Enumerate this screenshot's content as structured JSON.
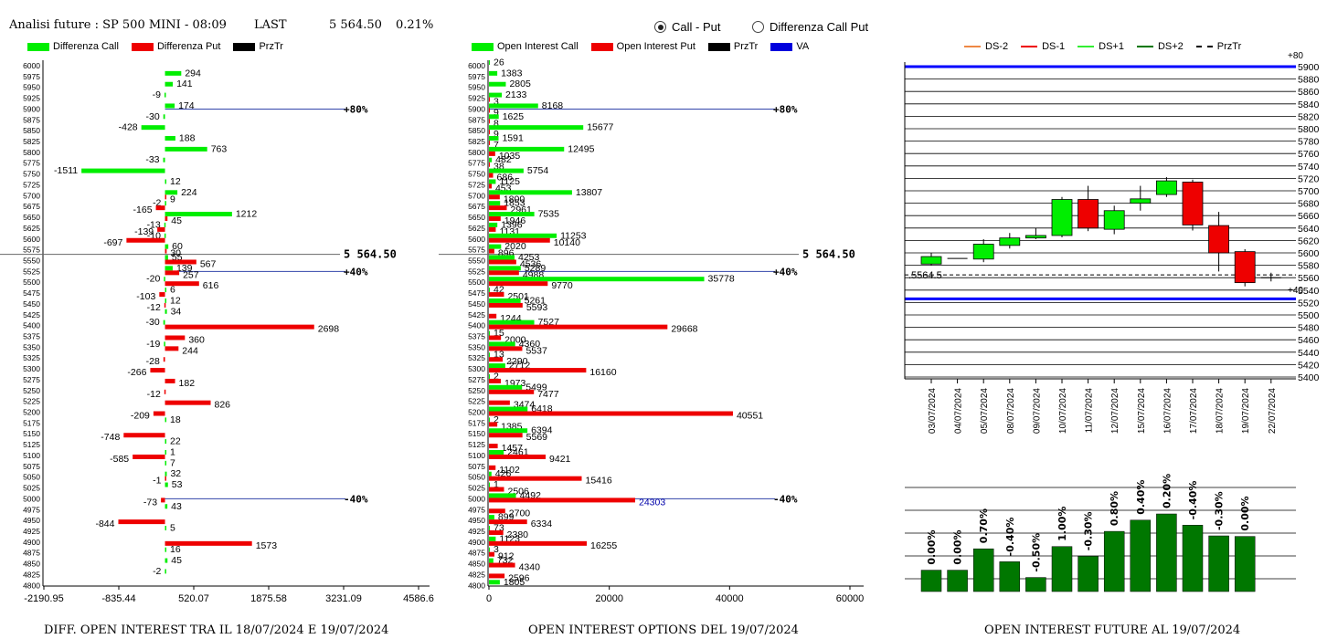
{
  "header": {
    "instrument": "Analisi future : SP 500 MINI - 08:09",
    "last_label": "LAST",
    "last_value": "5 564.50",
    "change": "0.21%"
  },
  "radio": [
    {
      "label": "Call - Put",
      "selected": true
    },
    {
      "label": "Differenza Call Put",
      "selected": false
    }
  ],
  "colors": {
    "green": "#00ee00",
    "red": "#ee0000",
    "blue": "#0000dd",
    "darkgreen": "#007700",
    "va": "#0000ff"
  },
  "strikes": [
    6000,
    5975,
    5950,
    5925,
    5900,
    5875,
    5850,
    5825,
    5800,
    5775,
    5750,
    5725,
    5700,
    5675,
    5650,
    5625,
    5600,
    5575,
    5550,
    5525,
    5500,
    5475,
    5450,
    5425,
    5400,
    5375,
    5350,
    5325,
    5300,
    5275,
    5250,
    5225,
    5200,
    5175,
    5150,
    5125,
    5100,
    5075,
    5050,
    5025,
    5000,
    4975,
    4950,
    4925,
    4900,
    4875,
    4850,
    4825,
    4800
  ],
  "left": {
    "legend": [
      {
        "label": "Differenza Call",
        "color": "#00ee00"
      },
      {
        "label": "Differenza Put",
        "color": "#ee0000"
      },
      {
        "label": "PrzTr",
        "color": "#000000"
      }
    ],
    "caption": "DIFF. OPEN INTEREST TRA IL 18/07/2024 E 19/07/2024",
    "xticks": [
      "-2190.95",
      "-835.44",
      "520.07",
      "1875.58",
      "3231.09",
      "4586.6"
    ],
    "xmin": -2190.95,
    "xmax": 4586.6,
    "price_label": "5 564.50",
    "pct_80": "+80%",
    "pct_40": "+40%",
    "pct_m40": "-40%"
  },
  "mid": {
    "legend": [
      {
        "label": "Open Interest Call",
        "color": "#00ee00"
      },
      {
        "label": "Open Interest Put",
        "color": "#ee0000"
      },
      {
        "label": "PrzTr",
        "color": "#000000"
      },
      {
        "label": "VA",
        "color": "#0000dd"
      }
    ],
    "caption": "OPEN INTEREST OPTIONS DEL 19/07/2024",
    "xticks": [
      "0",
      "20000",
      "40000",
      "60000"
    ],
    "xmax": 60000,
    "price_label": "5 564.50",
    "pct_80": "+80%",
    "pct_40": "+40%",
    "pct_m40": "-40%"
  },
  "right": {
    "legend": [
      {
        "label": "DS-2",
        "color": "#ee8844",
        "dash": false
      },
      {
        "label": "DS-1",
        "color": "#ee0000",
        "dash": false
      },
      {
        "label": "DS+1",
        "color": "#33ee33",
        "dash": false
      },
      {
        "label": "DS+2",
        "color": "#007700",
        "dash": false
      },
      {
        "label": "PrzTr",
        "color": "#000000",
        "dash": true
      }
    ],
    "yticks": [
      "5900",
      "5880",
      "5860",
      "5840",
      "5820",
      "5800",
      "5780",
      "5760",
      "5740",
      "5720",
      "5700",
      "5680",
      "5660",
      "5640",
      "5620",
      "5600",
      "5580",
      "5560",
      "5540",
      "5520",
      "5500",
      "5480",
      "5460",
      "5440",
      "5420",
      "5400"
    ],
    "top_label": "+80",
    "mid_label": "+40",
    "price_label": ".5564.5",
    "caption": "OPEN INTEREST FUTURE AL 19/07/2024"
  },
  "chart_data": [
    {
      "type": "bar",
      "title": "DIFF. OPEN INTEREST TRA IL 18/07/2024 E 19/07/2024",
      "categories": [
        6000,
        5975,
        5950,
        5925,
        5900,
        5875,
        5850,
        5825,
        5800,
        5775,
        5750,
        5725,
        5700,
        5675,
        5650,
        5625,
        5600,
        5575,
        5550,
        5525,
        5500,
        5475,
        5450,
        5425,
        5400,
        5375,
        5350,
        5325,
        5300,
        5275,
        5250,
        5225,
        5200,
        5175,
        5150,
        5125,
        5100,
        5075,
        5050,
        5025,
        5000,
        4975,
        4950,
        4925,
        4900,
        4875,
        4850,
        4825,
        4800
      ],
      "series": [
        {
          "name": "Differenza Call",
          "values": [
            null,
            294,
            141,
            -9,
            174,
            -30,
            -428,
            188,
            763,
            -33,
            -1511,
            12,
            224,
            -2,
            1212,
            -13,
            -10,
            60,
            55,
            139,
            -20,
            6,
            12,
            34,
            -30,
            null,
            -19,
            null,
            null,
            null,
            null,
            null,
            null,
            18,
            null,
            22,
            1,
            7,
            32,
            53,
            null,
            43,
            null,
            5,
            null,
            16,
            45,
            -2,
            null
          ]
        },
        {
          "name": "Differenza Put",
          "values": [
            null,
            null,
            null,
            null,
            null,
            null,
            null,
            null,
            null,
            null,
            null,
            null,
            9,
            -165,
            45,
            -139,
            -697,
            30,
            567,
            257,
            616,
            -103,
            -12,
            null,
            2698,
            360,
            244,
            -28,
            -266,
            182,
            -12,
            826,
            -209,
            null,
            -748,
            null,
            -585,
            null,
            -1,
            null,
            -73,
            null,
            -844,
            null,
            1573,
            null,
            null,
            null,
            null
          ]
        }
      ],
      "xlim": [
        -2190.95,
        4586.6
      ]
    },
    {
      "type": "bar",
      "title": "OPEN INTEREST OPTIONS DEL 19/07/2024",
      "categories": [
        6000,
        5975,
        5950,
        5925,
        5900,
        5875,
        5850,
        5825,
        5800,
        5775,
        5750,
        5725,
        5700,
        5675,
        5650,
        5625,
        5600,
        5575,
        5550,
        5525,
        5500,
        5475,
        5450,
        5425,
        5400,
        5375,
        5350,
        5325,
        5300,
        5275,
        5250,
        5225,
        5200,
        5175,
        5150,
        5125,
        5100,
        5075,
        5050,
        5025,
        5000,
        4975,
        4950,
        4925,
        4900,
        4875,
        4850,
        4825,
        4800
      ],
      "series": [
        {
          "name": "Open Interest Call",
          "values": [
            26,
            1383,
            2805,
            2133,
            8168,
            1625,
            15677,
            1591,
            12495,
            482,
            5754,
            1125,
            13807,
            1853,
            7535,
            1396,
            11253,
            2020,
            4253,
            5289,
            35778,
            42,
            5261,
            null,
            7527,
            15,
            4360,
            13,
            2712,
            2,
            5499,
            null,
            6418,
            2,
            6394,
            null,
            2461,
            null,
            426,
            1,
            4492,
            null,
            899,
            73,
            1123,
            3,
            732,
            null,
            1805
          ]
        },
        {
          "name": "Open Interest Put",
          "values": [
            null,
            null,
            null,
            3,
            9,
            8,
            9,
            7,
            1035,
            38,
            686,
            453,
            1800,
            2961,
            1946,
            1131,
            10140,
            896,
            4536,
            4988,
            9770,
            2501,
            5593,
            1244,
            29668,
            2000,
            5537,
            2290,
            16160,
            1973,
            7477,
            3474,
            40551,
            1385,
            5569,
            1457,
            9421,
            1102,
            15416,
            2506,
            24303,
            2700,
            6334,
            2380,
            16255,
            912,
            4340,
            2596,
            null
          ]
        }
      ],
      "xlim": [
        0,
        60000
      ]
    },
    {
      "type": "bar",
      "title": "",
      "categories": [
        "03/07/2024",
        "04/07/2024",
        "05/07/2024",
        "08/07/2024",
        "09/07/2024",
        "10/07/2024",
        "11/07/2024",
        "12/07/2024",
        "15/07/2024",
        "16/07/2024",
        "17/07/2024",
        "18/07/2024",
        "19/07/2024",
        "22/07/2024"
      ],
      "candles": [
        {
          "open": 5582,
          "close": 5594,
          "high": 5600,
          "low": 5580,
          "color": "green"
        },
        {
          "open": 5591,
          "close": 5591,
          "high": 5591,
          "low": 5591,
          "color": "green"
        },
        {
          "open": 5590,
          "close": 5614,
          "high": 5622,
          "low": 5585,
          "color": "green"
        },
        {
          "open": 5612,
          "close": 5624,
          "high": 5632,
          "low": 5607,
          "color": "green"
        },
        {
          "open": 5624,
          "close": 5628,
          "high": 5640,
          "low": 5622,
          "color": "green"
        },
        {
          "open": 5628,
          "close": 5686,
          "high": 5690,
          "low": 5625,
          "color": "green"
        },
        {
          "open": 5686,
          "close": 5640,
          "high": 5708,
          "low": 5635,
          "color": "red"
        },
        {
          "open": 5638,
          "close": 5668,
          "high": 5676,
          "low": 5630,
          "color": "green"
        },
        {
          "open": 5680,
          "close": 5687,
          "high": 5708,
          "low": 5668,
          "color": "green"
        },
        {
          "open": 5694,
          "close": 5716,
          "high": 5722,
          "low": 5690,
          "color": "green"
        },
        {
          "open": 5714,
          "close": 5645,
          "high": 5718,
          "low": 5636,
          "color": "red"
        },
        {
          "open": 5644,
          "close": 5600,
          "high": 5666,
          "low": 5570,
          "color": "red"
        },
        {
          "open": 5602,
          "close": 5552,
          "high": 5606,
          "low": 5546,
          "color": "red"
        },
        {
          "open": 5560,
          "close": 5560,
          "high": 5568,
          "low": 5554,
          "color": "green"
        }
      ],
      "price": 5564.5,
      "ylim": [
        5400,
        5900
      ]
    },
    {
      "type": "bar",
      "title": "OPEN INTEREST FUTURE AL 19/07/2024",
      "categories": [
        "03/07/2024",
        "04/07/2024",
        "05/07/2024",
        "08/07/2024",
        "09/07/2024",
        "10/07/2024",
        "11/07/2024",
        "12/07/2024",
        "15/07/2024",
        "16/07/2024",
        "17/07/2024",
        "18/07/2024",
        "19/07/2024"
      ],
      "labels": [
        "0.00%",
        "0.00%",
        "0.70%",
        "-0.40%",
        "-0.50%",
        "1.00%",
        "-0.30%",
        "0.80%",
        "0.40%",
        "0.20%",
        "-0.40%",
        "-0.30%",
        "0.00%"
      ],
      "values": [
        0.38,
        0.38,
        0.76,
        0.53,
        0.25,
        0.8,
        0.63,
        1.07,
        1.27,
        1.38,
        1.18,
        0.99,
        0.98
      ]
    }
  ]
}
